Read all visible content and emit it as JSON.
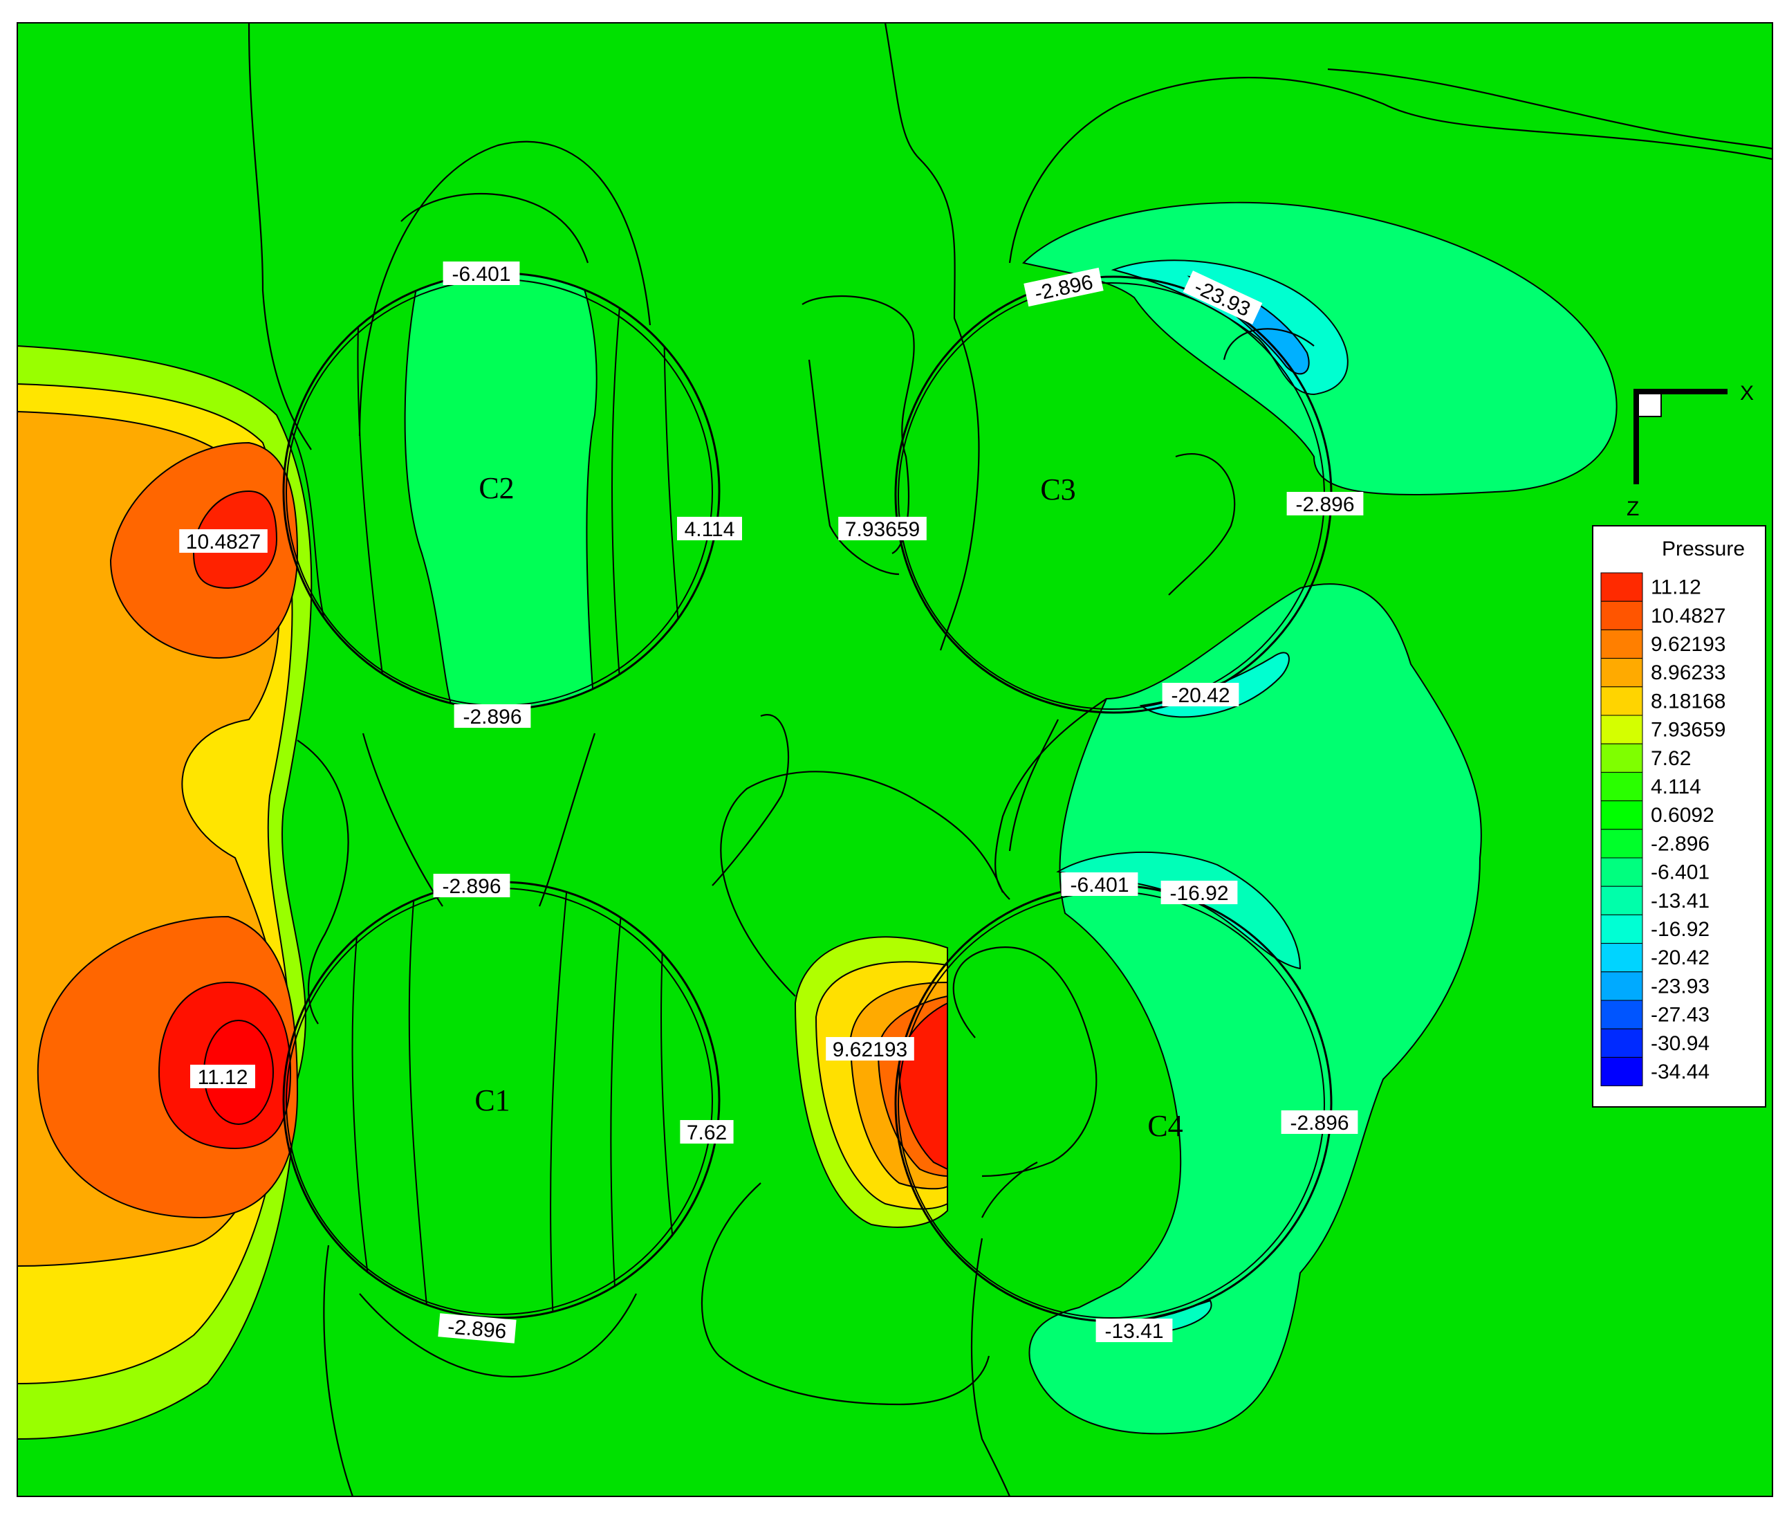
{
  "chart_data": {
    "type": "heatmap",
    "variable": "Pressure",
    "legend": {
      "title": "Pressure",
      "placement": "right",
      "levels": [
        {
          "label": "11.12",
          "color": "#ff2a00"
        },
        {
          "label": "10.4827",
          "color": "#ff5500"
        },
        {
          "label": "9.62193",
          "color": "#ff7f00"
        },
        {
          "label": "8.96233",
          "color": "#ffaa00"
        },
        {
          "label": "8.18168",
          "color": "#ffd400"
        },
        {
          "label": "7.93659",
          "color": "#d4ff00"
        },
        {
          "label": "7.62",
          "color": "#7fff00"
        },
        {
          "label": "4.114",
          "color": "#2aff00"
        },
        {
          "label": "0.6092",
          "color": "#00ff00"
        },
        {
          "label": "-2.896",
          "color": "#00ff2a"
        },
        {
          "label": "-6.401",
          "color": "#00ff7f"
        },
        {
          "label": "-13.41",
          "color": "#00ffaa"
        },
        {
          "label": "-16.92",
          "color": "#00ffd4"
        },
        {
          "label": "-20.42",
          "color": "#00d4ff"
        },
        {
          "label": "-23.93",
          "color": "#00aaff"
        },
        {
          "label": "-27.43",
          "color": "#0055ff"
        },
        {
          "label": "-30.94",
          "color": "#002aff"
        },
        {
          "label": "-34.44",
          "color": "#0000ff"
        }
      ]
    },
    "cylinders": [
      "C1",
      "C2",
      "C3",
      "C4"
    ],
    "contour_labels": [
      {
        "text": "-6.401",
        "near": "C2-top"
      },
      {
        "text": "10.4827",
        "near": "C2-left"
      },
      {
        "text": "4.114",
        "near": "C2-right"
      },
      {
        "text": "-2.896",
        "near": "C2-bottom"
      },
      {
        "text": "-2.896",
        "near": "C1-top"
      },
      {
        "text": "11.12",
        "near": "C1-left"
      },
      {
        "text": "7.62",
        "near": "C1-right"
      },
      {
        "text": "-2.896",
        "near": "C1-bottom"
      },
      {
        "text": "-2.896",
        "near": "C3-top"
      },
      {
        "text": "-23.93",
        "near": "C3-upper-right"
      },
      {
        "text": "7.93659",
        "near": "C3-left"
      },
      {
        "text": "-2.896",
        "near": "C3-right"
      },
      {
        "text": "-20.42",
        "near": "C3-bottom"
      },
      {
        "text": "-6.401",
        "near": "C4-top"
      },
      {
        "text": "-16.92",
        "near": "C4-upper-right"
      },
      {
        "text": "9.62193",
        "near": "C4-left"
      },
      {
        "text": "-2.896",
        "near": "C4-right"
      },
      {
        "text": "-13.41",
        "near": "C4-bottom"
      }
    ],
    "axes": {
      "x_label": "X",
      "z_label": "Z"
    },
    "background_color": "#00ff00"
  }
}
